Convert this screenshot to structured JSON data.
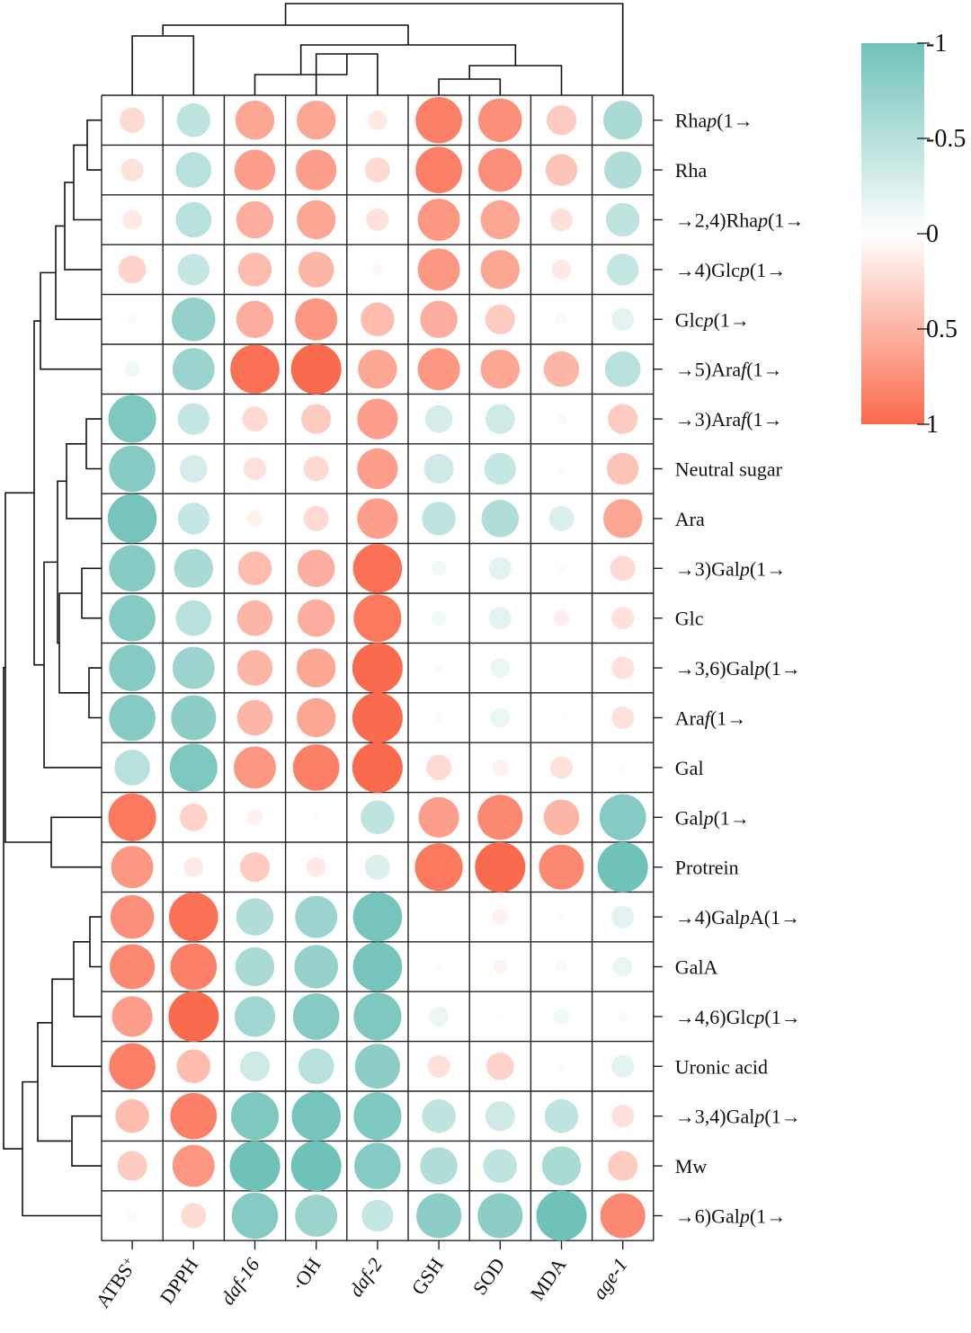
{
  "chart_data": {
    "type": "heatmap",
    "style": "correlation bubble heatmap with hierarchical clustering",
    "colorbar": {
      "ticks": [
        -1,
        -0.5,
        0,
        0.5,
        1
      ],
      "tick_labels": [
        "-1",
        "-0.5",
        "0",
        "0.5",
        "1"
      ],
      "colors": {
        "neg": "#6fc2b8",
        "zero": "#ffffff",
        "pos": "#fa6a4c"
      }
    },
    "columns": [
      {
        "id": "atbs",
        "main": "ATBS",
        "sup": "+",
        "italic": false
      },
      {
        "id": "dpph",
        "main": "DPPH",
        "sup": "",
        "italic": false
      },
      {
        "id": "daf16",
        "main": "daf-16",
        "sup": "",
        "italic": true
      },
      {
        "id": "oh",
        "main": "·OH",
        "sup": "",
        "italic": false
      },
      {
        "id": "daf2",
        "main": "daf-2",
        "sup": "",
        "italic": true
      },
      {
        "id": "gsh",
        "main": "GSH",
        "sup": "",
        "italic": false
      },
      {
        "id": "sod",
        "main": "SOD",
        "sup": "",
        "italic": false
      },
      {
        "id": "mda",
        "main": "MDA",
        "sup": "",
        "italic": false
      },
      {
        "id": "age1",
        "main": "age-1",
        "sup": "",
        "italic": true
      }
    ],
    "rows": [
      {
        "label": [
          [
            "Rha",
            ""
          ],
          [
            "p",
            "i"
          ],
          [
            "(1→",
            ""
          ]
        ],
        "values": [
          0.25,
          -0.45,
          0.6,
          0.6,
          0.15,
          0.85,
          0.75,
          0.35,
          -0.6
        ]
      },
      {
        "label": [
          [
            "Rha",
            ""
          ]
        ],
        "values": [
          0.2,
          -0.5,
          0.65,
          0.65,
          0.25,
          0.85,
          0.75,
          0.4,
          -0.55
        ]
      },
      {
        "label": [
          [
            "→2,4)Rha",
            ""
          ],
          [
            "p",
            "i"
          ],
          [
            "(1→",
            ""
          ]
        ],
        "values": [
          0.15,
          -0.5,
          0.55,
          0.6,
          0.2,
          0.7,
          0.6,
          0.2,
          -0.45
        ]
      },
      {
        "label": [
          [
            "→4)Glc",
            ""
          ],
          [
            "p",
            "i"
          ],
          [
            "(1→",
            ""
          ]
        ],
        "values": [
          0.3,
          -0.4,
          0.45,
          0.5,
          0.05,
          0.7,
          0.6,
          0.15,
          -0.4
        ]
      },
      {
        "label": [
          [
            "Glc",
            ""
          ],
          [
            "p",
            "i"
          ],
          [
            "(1→",
            ""
          ]
        ],
        "values": [
          -0.05,
          -0.75,
          0.55,
          0.7,
          0.45,
          0.55,
          0.35,
          0.05,
          -0.2
        ]
      },
      {
        "label": [
          [
            "→5)Ara",
            ""
          ],
          [
            "f",
            "i"
          ],
          [
            "(1→",
            ""
          ]
        ],
        "values": [
          -0.1,
          -0.7,
          0.95,
          1.0,
          0.6,
          0.7,
          0.6,
          0.5,
          -0.5
        ]
      },
      {
        "label": [
          [
            "→3)Ara",
            ""
          ],
          [
            "f",
            "i"
          ],
          [
            "(1→",
            ""
          ]
        ],
        "values": [
          -0.9,
          -0.4,
          0.25,
          0.35,
          0.65,
          -0.3,
          -0.35,
          -0.05,
          0.35
        ]
      },
      {
        "label": [
          [
            "Neutral sugar",
            ""
          ]
        ],
        "values": [
          -0.85,
          -0.3,
          0.2,
          0.25,
          0.65,
          -0.35,
          -0.4,
          -0.03,
          0.4
        ]
      },
      {
        "label": [
          [
            "Ara",
            ""
          ]
        ],
        "values": [
          -0.95,
          -0.4,
          0.1,
          0.25,
          0.65,
          -0.45,
          -0.55,
          -0.25,
          0.6
        ]
      },
      {
        "label": [
          [
            "→3)Gal",
            ""
          ],
          [
            "p",
            "i"
          ],
          [
            "(1→",
            ""
          ]
        ],
        "values": [
          -0.85,
          -0.6,
          0.45,
          0.55,
          0.95,
          -0.1,
          -0.2,
          -0.03,
          0.25
        ]
      },
      {
        "label": [
          [
            "Glc",
            ""
          ]
        ],
        "values": [
          -0.85,
          -0.5,
          0.5,
          0.55,
          0.9,
          -0.1,
          -0.2,
          0.1,
          0.2
        ]
      },
      {
        "label": [
          [
            "→3,6)Gal",
            ""
          ],
          [
            "p",
            "i"
          ],
          [
            "(1→",
            ""
          ]
        ],
        "values": [
          -0.85,
          -0.7,
          0.5,
          0.6,
          1.0,
          -0.05,
          -0.15,
          0.0,
          0.2
        ]
      },
      {
        "label": [
          [
            "Ara",
            ""
          ],
          [
            "f",
            "i"
          ],
          [
            "(1→",
            ""
          ]
        ],
        "values": [
          -0.85,
          -0.8,
          0.5,
          0.6,
          1.0,
          -0.05,
          -0.15,
          -0.02,
          0.2
        ]
      },
      {
        "label": [
          [
            "Gal",
            ""
          ]
        ],
        "values": [
          -0.5,
          -0.9,
          0.7,
          0.85,
          1.0,
          0.25,
          0.1,
          0.2,
          -0.03
        ]
      },
      {
        "label": [
          [
            "Gal",
            ""
          ],
          [
            "p",
            "i"
          ],
          [
            "(1→",
            ""
          ]
        ],
        "values": [
          0.9,
          0.3,
          0.1,
          0.03,
          -0.45,
          0.65,
          0.8,
          0.5,
          -0.85
        ]
      },
      {
        "label": [
          [
            "Protrein",
            ""
          ]
        ],
        "values": [
          0.7,
          0.15,
          0.35,
          0.15,
          -0.25,
          0.9,
          1.0,
          0.8,
          -1.0
        ]
      },
      {
        "label": [
          [
            "→4)Gal",
            ""
          ],
          [
            "p",
            "i"
          ],
          [
            "A(1→",
            ""
          ]
        ],
        "values": [
          0.75,
          0.95,
          -0.55,
          -0.7,
          -0.95,
          0.0,
          0.1,
          0.02,
          -0.2
        ]
      },
      {
        "label": [
          [
            "GalA",
            ""
          ]
        ],
        "values": [
          0.8,
          0.85,
          -0.6,
          -0.75,
          -0.95,
          0.02,
          0.08,
          0.05,
          -0.15
        ]
      },
      {
        "label": [
          [
            "→4,6)Glc",
            ""
          ],
          [
            "p",
            "i"
          ],
          [
            "(1→",
            ""
          ]
        ],
        "values": [
          0.65,
          1.0,
          -0.65,
          -0.85,
          -0.9,
          -0.15,
          -0.02,
          -0.1,
          -0.05
        ]
      },
      {
        "label": [
          [
            "Uronic acid",
            ""
          ]
        ],
        "values": [
          0.85,
          0.45,
          -0.35,
          -0.5,
          -0.8,
          0.2,
          0.3,
          0.03,
          -0.2
        ]
      },
      {
        "label": [
          [
            "→3,4)Gal",
            ""
          ],
          [
            "p",
            "i"
          ],
          [
            "(1→",
            ""
          ]
        ],
        "values": [
          0.45,
          0.85,
          -0.9,
          -0.95,
          -0.9,
          -0.45,
          -0.35,
          -0.45,
          0.2
        ]
      },
      {
        "label": [
          [
            "Mw",
            ""
          ]
        ],
        "values": [
          0.35,
          0.7,
          -1.0,
          -1.0,
          -0.85,
          -0.55,
          -0.45,
          -0.6,
          0.35
        ]
      },
      {
        "label": [
          [
            "→6)Gal",
            ""
          ],
          [
            "p",
            "i"
          ],
          [
            "(1→",
            ""
          ]
        ],
        "values": [
          -0.05,
          0.25,
          -0.85,
          -0.7,
          -0.4,
          -0.8,
          -0.8,
          -1.0,
          0.8
        ]
      }
    ]
  }
}
